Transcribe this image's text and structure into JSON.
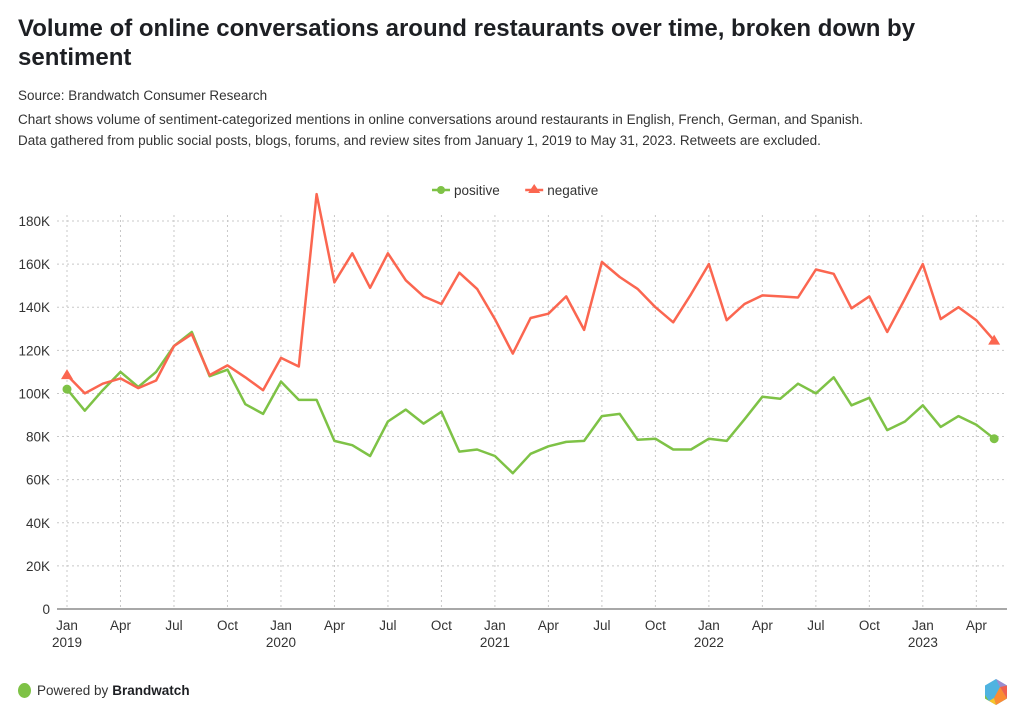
{
  "header": {
    "title": "Volume of online conversations around restaurants over time, broken down by sentiment",
    "source": "Source: Brandwatch Consumer Research",
    "description_lines": [
      "Chart shows volume of sentiment-categorized mentions in online conversations around restaurants in English, French, German, and Spanish.",
      "Data gathered from public social posts, blogs, forums, and review sites from January 1, 2019 to May 31, 2023. Retweets are excluded."
    ]
  },
  "footer": {
    "powered_by": "Powered by",
    "brand": "Brandwatch",
    "logo_icon": "brandwatch-hexagon-logo"
  },
  "chart_data": {
    "type": "line",
    "title": "Volume of online conversations around restaurants over time, broken down by sentiment",
    "xlabel": "",
    "ylabel": "",
    "ylim": [
      0,
      180000
    ],
    "yticks": [
      0,
      20000,
      40000,
      60000,
      80000,
      100000,
      120000,
      140000,
      160000,
      180000
    ],
    "ytick_labels": [
      "0",
      "20K",
      "40K",
      "60K",
      "80K",
      "100K",
      "120K",
      "140K",
      "160K",
      "180K"
    ],
    "grid": true,
    "legend_position": "top-center",
    "x_start": "2019-01",
    "x_end": "2023-05",
    "x_tick_labels": [
      {
        "month_index": 0,
        "label": "Jan",
        "year": "2019"
      },
      {
        "month_index": 3,
        "label": "Apr",
        "year": ""
      },
      {
        "month_index": 6,
        "label": "Jul",
        "year": ""
      },
      {
        "month_index": 9,
        "label": "Oct",
        "year": ""
      },
      {
        "month_index": 12,
        "label": "Jan",
        "year": "2020"
      },
      {
        "month_index": 15,
        "label": "Apr",
        "year": ""
      },
      {
        "month_index": 18,
        "label": "Jul",
        "year": ""
      },
      {
        "month_index": 21,
        "label": "Oct",
        "year": ""
      },
      {
        "month_index": 24,
        "label": "Jan",
        "year": "2021"
      },
      {
        "month_index": 27,
        "label": "Apr",
        "year": ""
      },
      {
        "month_index": 30,
        "label": "Jul",
        "year": ""
      },
      {
        "month_index": 33,
        "label": "Oct",
        "year": ""
      },
      {
        "month_index": 36,
        "label": "Jan",
        "year": "2022"
      },
      {
        "month_index": 39,
        "label": "Apr",
        "year": ""
      },
      {
        "month_index": 42,
        "label": "Jul",
        "year": ""
      },
      {
        "month_index": 45,
        "label": "Oct",
        "year": ""
      },
      {
        "month_index": 48,
        "label": "Jan",
        "year": "2023"
      },
      {
        "month_index": 51,
        "label": "Apr",
        "year": ""
      }
    ],
    "series": [
      {
        "name": "positive",
        "color": "#7ec246",
        "marker": "circle",
        "values": [
          102000,
          92000,
          101500,
          110000,
          103000,
          110000,
          122000,
          128500,
          108000,
          111000,
          95000,
          90500,
          105500,
          97000,
          97000,
          78000,
          76000,
          71000,
          87000,
          92500,
          86000,
          91500,
          73000,
          74000,
          71000,
          63000,
          72000,
          75500,
          77500,
          78000,
          89500,
          90500,
          78500,
          79000,
          74000,
          74000,
          79000,
          78000,
          88000,
          98500,
          97500,
          104500,
          100000,
          107500,
          94500,
          98000,
          83000,
          87000,
          94500,
          84500,
          89500,
          85500,
          79000
        ]
      },
      {
        "name": "negative",
        "color": "#fb6650",
        "marker": "triangle",
        "values": [
          108500,
          100000,
          104500,
          107000,
          102500,
          106000,
          122000,
          127500,
          108500,
          113000,
          107500,
          101500,
          116500,
          112500,
          192500,
          151500,
          165000,
          149000,
          165000,
          152500,
          145000,
          141500,
          156000,
          148500,
          134500,
          118500,
          135000,
          137000,
          145000,
          129500,
          161000,
          154000,
          148500,
          140000,
          133000,
          146000,
          160000,
          134000,
          141500,
          145500,
          145000,
          144500,
          157500,
          155500,
          139500,
          145000,
          128500,
          144000,
          160000,
          134500,
          140000,
          134000,
          124500
        ]
      }
    ]
  }
}
